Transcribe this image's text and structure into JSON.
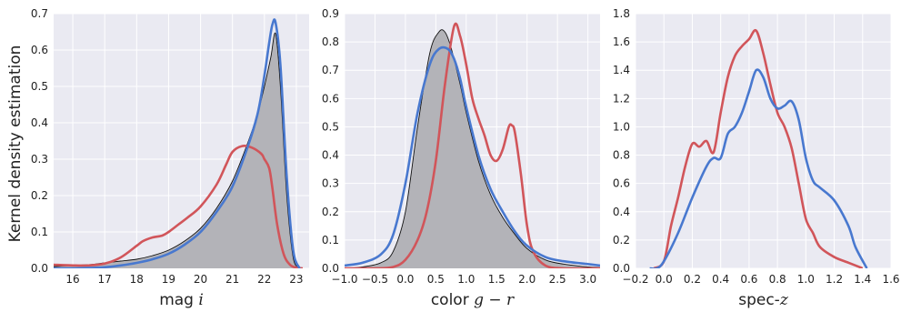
{
  "figure": {
    "ylabel": "Kernel density estimation"
  },
  "chart_data": [
    {
      "type": "area",
      "xlabel_text": "mag ",
      "xlabel_math": "i",
      "xlim": [
        15.4,
        23.4
      ],
      "ylim": [
        0,
        0.7
      ],
      "xticks": [
        16,
        17,
        18,
        19,
        20,
        21,
        22,
        23
      ],
      "xtick_labels": [
        "16",
        "17",
        "18",
        "19",
        "20",
        "21",
        "22",
        "23"
      ],
      "yticks": [
        0,
        0.1,
        0.2,
        0.3,
        0.4,
        0.5,
        0.6,
        0.7
      ],
      "ytick_labels": [
        "0.0",
        "0.1",
        "0.2",
        "0.3",
        "0.4",
        "0.5",
        "0.6",
        "0.7"
      ],
      "grid": true,
      "series": [
        {
          "style": "filled-gray",
          "color": "#b3b3b8",
          "x": [
            15.4,
            16.0,
            16.5,
            17.0,
            17.5,
            18.0,
            18.5,
            19.0,
            19.5,
            20.0,
            20.5,
            21.0,
            21.5,
            21.8,
            22.0,
            22.2,
            22.35,
            22.5,
            22.7,
            22.9,
            23.1
          ],
          "y": [
            0.005,
            0.008,
            0.01,
            0.015,
            0.02,
            0.025,
            0.035,
            0.05,
            0.075,
            0.11,
            0.165,
            0.24,
            0.35,
            0.43,
            0.5,
            0.58,
            0.645,
            0.5,
            0.2,
            0.03,
            0.002
          ]
        },
        {
          "color": "#d1555a",
          "x": [
            15.4,
            16.0,
            16.5,
            17.0,
            17.5,
            18.0,
            18.2,
            18.5,
            18.8,
            19.0,
            19.3,
            19.6,
            20.0,
            20.5,
            20.8,
            21.0,
            21.3,
            21.6,
            21.9,
            22.0,
            22.15,
            22.25,
            22.4,
            22.6,
            22.8,
            23.0,
            23.2
          ],
          "y": [
            0.01,
            0.008,
            0.008,
            0.013,
            0.03,
            0.062,
            0.075,
            0.085,
            0.09,
            0.1,
            0.12,
            0.14,
            0.17,
            0.23,
            0.285,
            0.32,
            0.336,
            0.332,
            0.315,
            0.3,
            0.275,
            0.22,
            0.12,
            0.04,
            0.01,
            0.002,
            0.0
          ]
        },
        {
          "color": "#4878cf",
          "x": [
            15.4,
            16.0,
            16.5,
            17.0,
            17.5,
            18.0,
            18.5,
            19.0,
            19.5,
            20.0,
            20.5,
            21.0,
            21.5,
            21.8,
            22.0,
            22.15,
            22.25,
            22.35,
            22.5,
            22.7,
            22.9,
            23.1
          ],
          "y": [
            0.0,
            0.0,
            0.001,
            0.003,
            0.008,
            0.015,
            0.025,
            0.04,
            0.065,
            0.1,
            0.155,
            0.225,
            0.34,
            0.43,
            0.53,
            0.62,
            0.67,
            0.675,
            0.56,
            0.25,
            0.05,
            0.0
          ]
        }
      ]
    },
    {
      "type": "area",
      "xlabel_text": "color ",
      "xlabel_math": "g − r",
      "xlim": [
        -1.0,
        3.2
      ],
      "ylim": [
        0,
        0.9
      ],
      "xticks": [
        -1.0,
        -0.5,
        0.0,
        0.5,
        1.0,
        1.5,
        2.0,
        2.5,
        3.0
      ],
      "xtick_labels": [
        "−1.0",
        "−0.5",
        "0.0",
        "0.5",
        "1.0",
        "1.5",
        "2.0",
        "2.5",
        "3.0"
      ],
      "yticks": [
        0,
        0.1,
        0.2,
        0.3,
        0.4,
        0.5,
        0.6,
        0.7,
        0.8,
        0.9
      ],
      "ytick_labels": [
        "0.0",
        "0.1",
        "0.2",
        "0.3",
        "0.4",
        "0.5",
        "0.6",
        "0.7",
        "0.8",
        "0.9"
      ],
      "grid": true,
      "series": [
        {
          "style": "filled-gray",
          "color": "#b3b3b8",
          "x": [
            -1.0,
            -0.7,
            -0.4,
            -0.2,
            0.0,
            0.2,
            0.4,
            0.55,
            0.65,
            0.75,
            0.9,
            1.0,
            1.2,
            1.4,
            1.6,
            1.8,
            2.0,
            2.3,
            2.6,
            3.0,
            3.2
          ],
          "y": [
            0.0,
            0.005,
            0.02,
            0.06,
            0.2,
            0.5,
            0.76,
            0.835,
            0.835,
            0.78,
            0.65,
            0.55,
            0.38,
            0.26,
            0.18,
            0.12,
            0.07,
            0.03,
            0.015,
            0.005,
            0.003
          ]
        },
        {
          "color": "#d1555a",
          "x": [
            -1.0,
            -0.5,
            -0.2,
            0.0,
            0.2,
            0.35,
            0.5,
            0.65,
            0.8,
            0.9,
            1.0,
            1.1,
            1.2,
            1.3,
            1.4,
            1.5,
            1.6,
            1.7,
            1.75,
            1.8,
            1.9,
            2.0,
            2.1,
            2.3,
            2.6,
            3.2
          ],
          "y": [
            0.0,
            0.0,
            0.005,
            0.03,
            0.1,
            0.2,
            0.38,
            0.65,
            0.855,
            0.82,
            0.72,
            0.6,
            0.53,
            0.47,
            0.4,
            0.38,
            0.42,
            0.5,
            0.505,
            0.48,
            0.33,
            0.15,
            0.06,
            0.01,
            0.0,
            0.0
          ]
        },
        {
          "color": "#4878cf",
          "x": [
            -1.0,
            -0.7,
            -0.4,
            -0.2,
            0.0,
            0.2,
            0.4,
            0.55,
            0.7,
            0.8,
            0.9,
            1.0,
            1.2,
            1.4,
            1.6,
            1.8,
            2.0,
            2.3,
            2.6,
            3.0,
            3.2
          ],
          "y": [
            0.01,
            0.02,
            0.05,
            0.12,
            0.3,
            0.55,
            0.72,
            0.775,
            0.775,
            0.74,
            0.67,
            0.57,
            0.4,
            0.28,
            0.2,
            0.13,
            0.08,
            0.04,
            0.025,
            0.015,
            0.01
          ]
        }
      ]
    },
    {
      "type": "line",
      "xlabel_text": "spec-",
      "xlabel_math": "z",
      "xlim": [
        -0.2,
        1.6
      ],
      "ylim": [
        0,
        1.8
      ],
      "xticks": [
        -0.2,
        0.0,
        0.2,
        0.4,
        0.6,
        0.8,
        1.0,
        1.2,
        1.4,
        1.6
      ],
      "xtick_labels": [
        "−0.2",
        "0.0",
        "0.2",
        "0.4",
        "0.6",
        "0.8",
        "1.0",
        "1.2",
        "1.4",
        "1.6"
      ],
      "yticks": [
        0,
        0.2,
        0.4,
        0.6,
        0.8,
        1.0,
        1.2,
        1.4,
        1.6,
        1.8
      ],
      "ytick_labels": [
        "0.0",
        "0.2",
        "0.4",
        "0.6",
        "0.8",
        "1.0",
        "1.2",
        "1.4",
        "1.6",
        "1.8"
      ],
      "grid": true,
      "series": [
        {
          "color": "#d1555a",
          "x": [
            -0.07,
            0.0,
            0.05,
            0.1,
            0.15,
            0.2,
            0.25,
            0.3,
            0.35,
            0.4,
            0.45,
            0.5,
            0.55,
            0.6,
            0.65,
            0.7,
            0.75,
            0.8,
            0.85,
            0.9,
            0.95,
            1.0,
            1.05,
            1.1,
            1.2,
            1.3,
            1.4
          ],
          "y": [
            0.0,
            0.05,
            0.3,
            0.5,
            0.72,
            0.88,
            0.86,
            0.9,
            0.82,
            1.1,
            1.35,
            1.5,
            1.57,
            1.62,
            1.68,
            1.52,
            1.3,
            1.1,
            1.0,
            0.85,
            0.6,
            0.35,
            0.25,
            0.15,
            0.08,
            0.04,
            0.0
          ]
        },
        {
          "color": "#4878cf",
          "x": [
            -0.1,
            -0.05,
            0.0,
            0.1,
            0.2,
            0.3,
            0.35,
            0.4,
            0.45,
            0.5,
            0.55,
            0.6,
            0.65,
            0.7,
            0.75,
            0.8,
            0.85,
            0.9,
            0.95,
            1.0,
            1.05,
            1.1,
            1.2,
            1.3,
            1.35,
            1.43
          ],
          "y": [
            0.0,
            0.0,
            0.05,
            0.25,
            0.5,
            0.72,
            0.78,
            0.78,
            0.95,
            1.0,
            1.1,
            1.25,
            1.4,
            1.35,
            1.2,
            1.13,
            1.15,
            1.18,
            1.05,
            0.78,
            0.62,
            0.57,
            0.48,
            0.3,
            0.15,
            0.0
          ]
        }
      ]
    }
  ]
}
